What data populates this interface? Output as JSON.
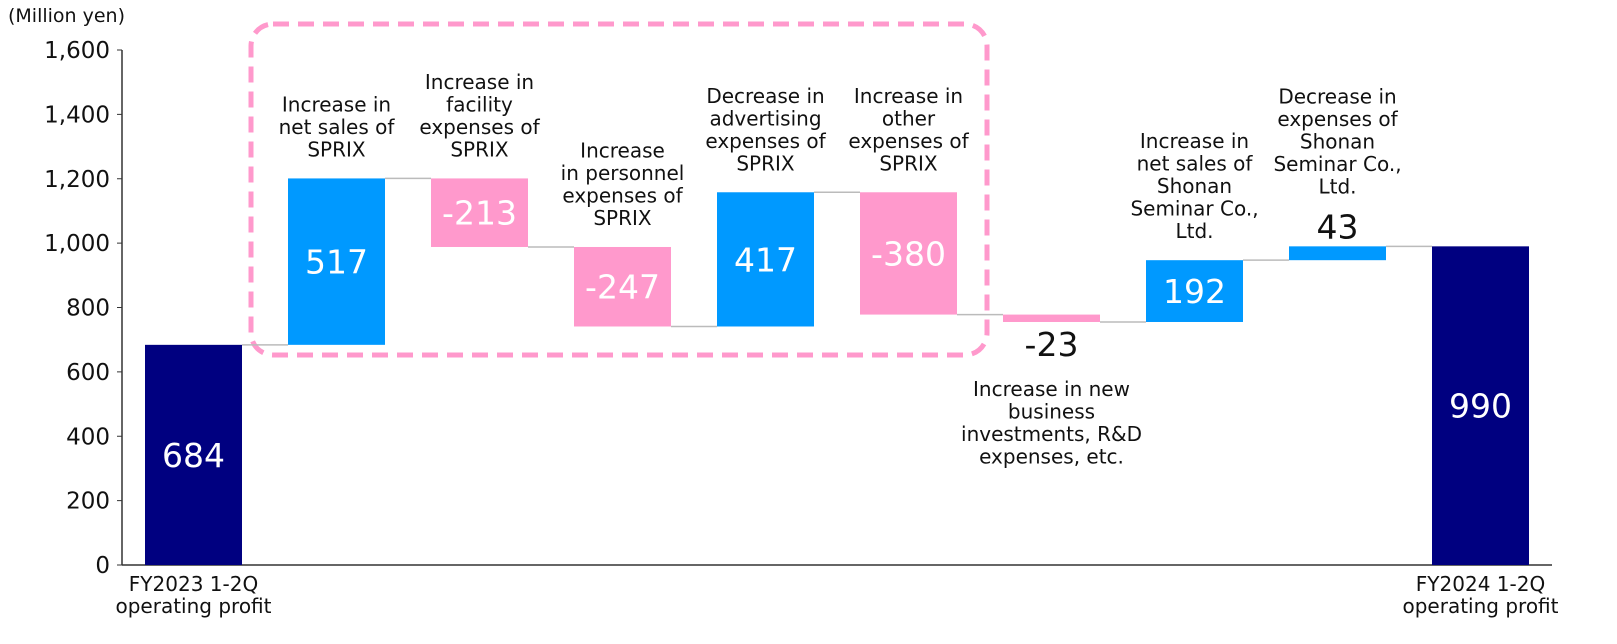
{
  "chart_data": {
    "type": "waterfall",
    "y_axis_label": "(Million yen)",
    "categories": [
      "FY2023 1-2Q\noperating profit",
      "Increase in\nnet sales of\nSPRIX",
      "Increase in\nfacility\nexpenses of\nSPRIX",
      "Increase\nin personnel\nexpenses of\nSPRIX",
      "Decrease in\nadvertising\nexpenses of\nSPRIX",
      "Increase in\nother\nexpenses of\nSPRIX",
      "Increase in new\nbusiness\ninvestments, R&D\nexpenses, etc.",
      "Increase in\nnet sales of\nShonan\nSeminar Co.,\nLtd.",
      "Decrease in\nexpenses of\nShonan\nSeminar Co.,\nLtd.",
      "FY2024 1-2Q\noperating profit"
    ],
    "values": [
      684,
      517,
      -213,
      -247,
      417,
      -380,
      -23,
      192,
      43,
      990
    ],
    "totals": [
      true,
      false,
      false,
      false,
      false,
      false,
      false,
      false,
      false,
      true
    ],
    "colors": {
      "total": "#000080",
      "increase": "#0099ff",
      "decrease": "#ff99cc"
    },
    "ylim": [
      0,
      1600
    ],
    "yticks": [
      0,
      200,
      400,
      600,
      800,
      {
        "value": 1000,
        "label": "1,000"
      },
      {
        "value": 1200,
        "label": "1,200"
      },
      {
        "value": 1400,
        "label": "1,400"
      },
      {
        "value": 1600,
        "label": "1,600"
      }
    ]
  }
}
